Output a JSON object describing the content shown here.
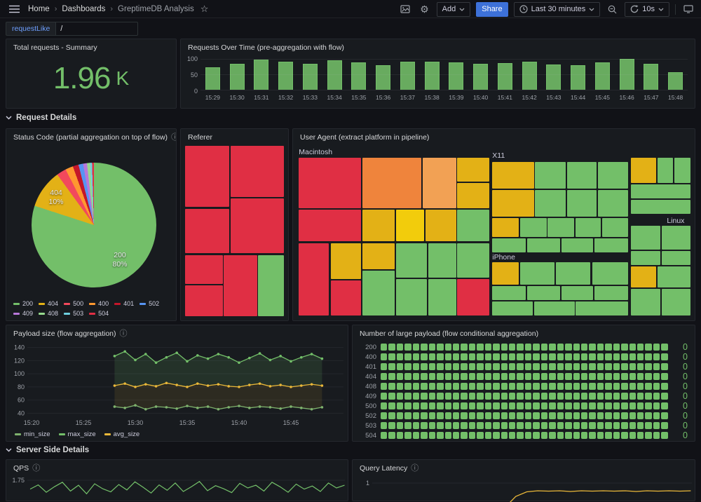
{
  "nav": {
    "breadcrumb": [
      {
        "label": "Home"
      },
      {
        "label": "Dashboards"
      },
      {
        "label": "GreptimeDB Analysis"
      }
    ],
    "add_label": "Add",
    "share_label": "Share",
    "time_range": "Last 30 minutes",
    "refresh_interval": "10s"
  },
  "icons": {
    "info": "ⓘ",
    "gear": "⚙",
    "star": "☆",
    "breadcrumb_separator": "›"
  },
  "variables": {
    "label": "requestLike",
    "value": "/"
  },
  "section_rows": {
    "request_details": "Request Details",
    "server_side": "Server Side Details"
  },
  "panels": {
    "total": {
      "title": "Total requests - Summary",
      "value": "1.96",
      "unit": "K"
    },
    "requests": {
      "title": "Requests Over Time (pre-aggregation with flow)"
    },
    "status": {
      "title": "Status Code (partial aggregation on top of flow)"
    },
    "referer": {
      "title": "Referer"
    },
    "user_agent": {
      "title": "User Agent (extract platform in pipeline)"
    },
    "payload": {
      "title": "Payload size (flow aggregation)"
    },
    "large_payload": {
      "title": "Number of large payload (flow conditional aggregation)"
    },
    "qps": {
      "title": "QPS"
    },
    "latency": {
      "title": "Query Latency"
    }
  },
  "colors": {
    "background": "#111217",
    "panel": "#181b1f",
    "border": "#25282e",
    "text": "#ccccdc",
    "text_dim": "#9da1a8",
    "green": "#73bf69",
    "yellow": "#e3b116",
    "red": "#e02f44",
    "orange": "#ef843c",
    "accent_blue": "#3d71d9",
    "variable_blue": "#6e9fff",
    "palette": {
      "red": "#e02f44",
      "orange": "#ef843c",
      "orange2": "#f2a154",
      "yellow": "#e3b116",
      "yellow2": "#f2cc0c",
      "green": "#73bf69",
      "green2": "#96d98d"
    }
  },
  "chart_data": [
    {
      "id": "requests_over_time",
      "type": "bar",
      "title": "Requests Over Time (pre-aggregation with flow)",
      "categories": [
        "15:29",
        "15:30",
        "15:31",
        "15:32",
        "15:33",
        "15:34",
        "15:35",
        "15:36",
        "15:37",
        "15:38",
        "15:39",
        "15:40",
        "15:41",
        "15:42",
        "15:43",
        "15:44",
        "15:45",
        "15:46",
        "15:47",
        "15:48"
      ],
      "values": [
        72,
        84,
        98,
        90,
        83,
        95,
        88,
        80,
        90,
        92,
        89,
        84,
        87,
        90,
        82,
        79,
        88,
        100,
        84,
        57
      ],
      "ylim": [
        0,
        100
      ],
      "yticks": [
        0,
        50,
        100
      ],
      "color": "#73bf69"
    },
    {
      "id": "status_code",
      "type": "pie",
      "title": "Status Code (partial aggregation on top of flow)",
      "labels": [
        "200",
        "404",
        "500",
        "400",
        "401",
        "502",
        "409",
        "408",
        "503",
        "504"
      ],
      "values": [
        80,
        10,
        2.5,
        2,
        1.5,
        1.2,
        1,
        0.8,
        0.5,
        0.5
      ],
      "colors": [
        "#73bf69",
        "#e3b116",
        "#f2495c",
        "#ff9830",
        "#c4162a",
        "#5794f2",
        "#b877d9",
        "#96d98d",
        "#6ed0e0",
        "#e02f44"
      ],
      "annotations": [
        {
          "label": "200",
          "pct": "80%"
        },
        {
          "label": "404",
          "pct": "10%"
        }
      ],
      "legend_position": "bottom"
    },
    {
      "id": "referer",
      "type": "treemap",
      "title": "Referer",
      "tile_format": "[x%, y%, w%, h%, color]",
      "tiles": [
        [
          0,
          0,
          45,
          36,
          "red"
        ],
        [
          46,
          0,
          54,
          30,
          "red"
        ],
        [
          0,
          37,
          45,
          26,
          "red"
        ],
        [
          46,
          31,
          54,
          32,
          "red"
        ],
        [
          0,
          64,
          38,
          17,
          "red"
        ],
        [
          0,
          82,
          38,
          18,
          "red"
        ],
        [
          39,
          64,
          34,
          36,
          "red"
        ],
        [
          74,
          64,
          26,
          36,
          "green"
        ]
      ]
    },
    {
      "id": "user_agent",
      "type": "treemap",
      "title": "User Agent (extract platform in pipeline)",
      "groups": [
        {
          "name": "Macintosh",
          "x": 0.4,
          "y": 1.2
        },
        {
          "name": "X11",
          "x": 49.6,
          "y": 3.3
        },
        {
          "name": "iPhone",
          "x": 49.6,
          "y": 62.8
        },
        {
          "name": "Linux",
          "x": 94,
          "y": 41.5
        }
      ],
      "tile_format": "[x%, y%, w%, h%, color]",
      "tiles": [
        [
          0.4,
          7,
          15.9,
          29.5,
          "red"
        ],
        [
          16.6,
          7,
          14.9,
          29.5,
          "orange"
        ],
        [
          31.9,
          7,
          8.5,
          29.5,
          "orange2"
        ],
        [
          40.7,
          7,
          8.1,
          13.9,
          "yellow"
        ],
        [
          40.7,
          21.7,
          8.1,
          14.8,
          "yellow"
        ],
        [
          0.4,
          37.3,
          15.9,
          18.8,
          "red"
        ],
        [
          16.6,
          37.3,
          8.2,
          18.8,
          "yellow"
        ],
        [
          25.1,
          37.3,
          7.1,
          18.8,
          "yellow2"
        ],
        [
          32.6,
          37.3,
          7.8,
          18.8,
          "yellow"
        ],
        [
          40.7,
          37.3,
          8.1,
          18.8,
          "green"
        ],
        [
          0.4,
          57,
          7.7,
          42.6,
          "red"
        ],
        [
          8.5,
          57,
          7.8,
          21.3,
          "yellow"
        ],
        [
          8.5,
          79.1,
          7.8,
          20.5,
          "red"
        ],
        [
          16.6,
          57,
          8.2,
          15.5,
          "yellow"
        ],
        [
          16.6,
          73.4,
          8.2,
          26.2,
          "green"
        ],
        [
          25.1,
          57,
          7.8,
          20.5,
          "green"
        ],
        [
          33.3,
          57,
          7.1,
          20.5,
          "green"
        ],
        [
          40.7,
          57,
          8.1,
          20.5,
          "green"
        ],
        [
          25.1,
          78.3,
          7.8,
          21.3,
          "green"
        ],
        [
          33.3,
          78.3,
          7.1,
          21.3,
          "green"
        ],
        [
          40.7,
          78.3,
          8.1,
          21.3,
          "red"
        ],
        [
          49.6,
          9.4,
          10.6,
          15.6,
          "yellow"
        ],
        [
          49.6,
          25.8,
          10.6,
          15.6,
          "yellow"
        ],
        [
          60.5,
          9.4,
          7.8,
          15.6,
          "green"
        ],
        [
          68.7,
          9.4,
          7.4,
          15.6,
          "green"
        ],
        [
          76.5,
          9.4,
          7.7,
          15.6,
          "green"
        ],
        [
          60.5,
          25.8,
          7.8,
          15.6,
          "green"
        ],
        [
          68.7,
          25.8,
          7.4,
          15.6,
          "green"
        ],
        [
          76.5,
          25.8,
          7.7,
          15.6,
          "green"
        ],
        [
          49.6,
          42.2,
          6.7,
          11.5,
          "yellow"
        ],
        [
          56.6,
          42.2,
          6.8,
          11.5,
          "green"
        ],
        [
          63.7,
          42.2,
          6.7,
          11.5,
          "green"
        ],
        [
          70.8,
          42.2,
          6.4,
          11.5,
          "green"
        ],
        [
          77.5,
          42.2,
          6.7,
          11.5,
          "green"
        ],
        [
          49.6,
          54.5,
          8.5,
          8.2,
          "green"
        ],
        [
          58.4,
          54.5,
          8.5,
          8.2,
          "green"
        ],
        [
          67.2,
          54.5,
          8.1,
          8.2,
          "green"
        ],
        [
          75.6,
          54.5,
          8.6,
          8.2,
          "green"
        ],
        [
          49.6,
          68.4,
          6.7,
          13.2,
          "yellow"
        ],
        [
          56.6,
          68.4,
          8.8,
          13.2,
          "green"
        ],
        [
          65.8,
          68.4,
          8.8,
          13.2,
          "green"
        ],
        [
          75,
          68.4,
          9.2,
          13.2,
          "green"
        ],
        [
          49.6,
          82.4,
          8.5,
          8.2,
          "green"
        ],
        [
          58.4,
          82.4,
          8.5,
          8.2,
          "green"
        ],
        [
          67.2,
          82.4,
          8.1,
          8.2,
          "green"
        ],
        [
          75.6,
          82.4,
          8.6,
          8.2,
          "green"
        ],
        [
          49.6,
          91.4,
          10.3,
          8.2,
          "green"
        ],
        [
          60.2,
          91.4,
          10.3,
          8.2,
          "green"
        ],
        [
          70.8,
          91.4,
          13.4,
          8.2,
          "green"
        ],
        [
          84.9,
          7,
          6.4,
          14.7,
          "yellow"
        ],
        [
          91.7,
          7,
          3.9,
          14.7,
          "green"
        ],
        [
          95.9,
          7,
          4.1,
          14.7,
          "green"
        ],
        [
          84.9,
          22.5,
          15.1,
          8.2,
          "green"
        ],
        [
          84.9,
          31.6,
          15.1,
          8.2,
          "green"
        ],
        [
          84.9,
          47.1,
          7.5,
          14,
          "green"
        ],
        [
          92.7,
          47.1,
          7.3,
          14,
          "green"
        ],
        [
          84.9,
          61.9,
          7.5,
          8.2,
          "green"
        ],
        [
          92.7,
          61.9,
          7.3,
          8.2,
          "green"
        ],
        [
          84.9,
          70.9,
          6.4,
          12.3,
          "yellow"
        ],
        [
          91.6,
          70.9,
          8.4,
          12.3,
          "green"
        ],
        [
          84.9,
          84,
          7.5,
          15.6,
          "green"
        ],
        [
          92.7,
          84,
          7.3,
          15.6,
          "green"
        ]
      ]
    },
    {
      "id": "payload_size",
      "type": "line",
      "title": "Payload size (flow aggregation)",
      "x_start": "15:28",
      "x_step_minutes": 1,
      "xticks": [
        "15:20",
        "15:25",
        "15:30",
        "15:35",
        "15:40",
        "15:45"
      ],
      "yticks": [
        40,
        60,
        80,
        100,
        120,
        140
      ],
      "ylim": [
        35,
        145
      ],
      "series": [
        {
          "name": "min_size",
          "color": "#7eb26d",
          "values": [
            50,
            48,
            52,
            46,
            50,
            49,
            47,
            51,
            48,
            50,
            46,
            49,
            51,
            48,
            50,
            49,
            47,
            50,
            48,
            46,
            49
          ]
        },
        {
          "name": "max_size",
          "color": "#73bf69",
          "values": [
            127,
            134,
            121,
            130,
            117,
            125,
            132,
            119,
            128,
            123,
            130,
            125,
            117,
            124,
            131,
            121,
            127,
            119,
            125,
            130,
            123
          ]
        },
        {
          "name": "avg_size",
          "color": "#eab839",
          "values": [
            82,
            85,
            80,
            84,
            81,
            86,
            83,
            80,
            85,
            82,
            84,
            81,
            80,
            83,
            85,
            81,
            83,
            80,
            82,
            84,
            82
          ]
        }
      ]
    },
    {
      "id": "large_payload",
      "type": "status-history",
      "title": "Number of large payload (flow conditional aggregation)",
      "rows": [
        "200",
        "400",
        "401",
        "404",
        "408",
        "409",
        "500",
        "502",
        "503",
        "504"
      ],
      "values": [
        0,
        0,
        0,
        0,
        0,
        0,
        0,
        0,
        0,
        0
      ],
      "cells_per_row": 36,
      "cell_color": "#73bf69"
    },
    {
      "id": "qps",
      "type": "line",
      "title": "QPS",
      "yticks": [
        1.75
      ],
      "series": [
        {
          "name": "qps",
          "color": "#73bf69",
          "values": [
            1.52,
            1.63,
            1.44,
            1.58,
            1.7,
            1.47,
            1.62,
            1.4,
            1.66,
            1.53,
            1.45,
            1.64,
            1.5,
            1.71,
            1.57,
            1.42,
            1.63,
            1.49,
            1.68,
            1.46,
            1.58,
            1.72,
            1.48,
            1.61,
            1.53,
            1.43,
            1.67,
            1.55,
            1.62,
            1.47,
            1.7,
            1.58,
            1.44,
            1.65,
            1.52,
            1.6,
            1.46,
            1.68,
            1.55,
            1.62
          ]
        }
      ]
    },
    {
      "id": "query_latency",
      "type": "line",
      "title": "Query Latency",
      "yticks": [
        1
      ],
      "series": [
        {
          "name": "latency",
          "color": "#eab839",
          "values": [
            null,
            null,
            null,
            null,
            null,
            null,
            null,
            null,
            null,
            null,
            null,
            0.05,
            0.3,
            0.62,
            0.75,
            0.78,
            0.77,
            0.78,
            0.76,
            0.78,
            0.77,
            0.78,
            0.77,
            0.78,
            0.76,
            0.78,
            0.77,
            0.78,
            0.77,
            0.78
          ]
        }
      ]
    }
  ]
}
